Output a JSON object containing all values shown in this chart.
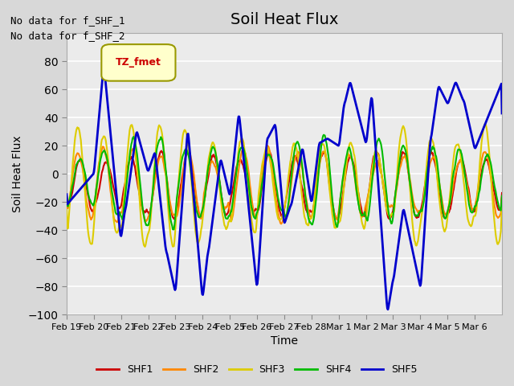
{
  "title": "Soil Heat Flux",
  "xlabel": "Time",
  "ylabel": "Soil Heat Flux",
  "ylim": [
    -100,
    100
  ],
  "yticks": [
    -100,
    -80,
    -60,
    -40,
    -20,
    0,
    20,
    40,
    60,
    80
  ],
  "fig_bg_color": "#d8d8d8",
  "plot_bg_color": "#ebebeb",
  "line_colors": {
    "SHF1": "#cc0000",
    "SHF2": "#ff8800",
    "SHF3": "#ddcc00",
    "SHF4": "#00bb00",
    "SHF5": "#0000cc"
  },
  "line_width": 1.5,
  "annotations": [
    "No data for f_SHF_1",
    "No data for f_SHF_2"
  ],
  "legend_box_color": "#ffffcc",
  "legend_box_text": "TZ_fmet",
  "x_tick_labels": [
    "Feb 19",
    "Feb 20",
    "Feb 21",
    "Feb 22",
    "Feb 23",
    "Feb 24",
    "Feb 25",
    "Feb 26",
    "Feb 27",
    "Feb 28",
    "Mar 1",
    "Mar 2",
    "Mar 3",
    "Mar 4",
    "Mar 5",
    "Mar 6"
  ],
  "figsize": [
    6.4,
    4.8
  ],
  "dpi": 100
}
